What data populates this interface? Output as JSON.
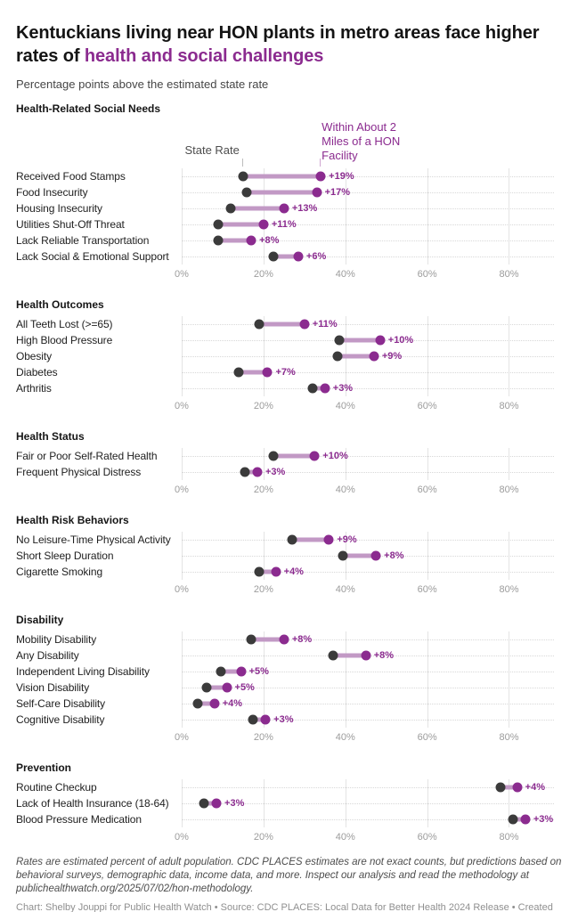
{
  "header": {
    "title_black": "Kentuckians living near HON plants in metro areas face higher rates of ",
    "title_accent": "health and social challenges",
    "subtitle": "Percentage points above the estimated state rate"
  },
  "legend": {
    "state_label": "State Rate",
    "hon_label": "Within About 2 Miles of a HON Facility"
  },
  "colors": {
    "accent": "#8b2b8f",
    "state_dot": "#3b3b3b",
    "connector": "#c299c5",
    "gridline": "#e4e4e4",
    "axis_text": "#9c9c9c"
  },
  "axis": {
    "tick_labels": [
      "0%",
      "20%",
      "40%",
      "60%",
      "80%"
    ],
    "tick_values": [
      0,
      20,
      40,
      60,
      80
    ],
    "max": 91
  },
  "chart_data": {
    "type": "dumbbell",
    "title": "Kentuckians living near HON plants in metro areas face higher rates of health and social challenges",
    "subtitle": "Percentage points above the estimated state rate",
    "series_names": [
      "State Rate",
      "Within About 2 Miles of a HON Facility"
    ],
    "x_unit": "percent of adult population",
    "xlim": [
      0,
      91
    ],
    "x_ticks": [
      0,
      20,
      40,
      60,
      80
    ],
    "sections": [
      {
        "name": "Health-Related Social Needs",
        "rows": [
          {
            "label": "Received Food Stamps",
            "state": 15,
            "hon": 34,
            "diff": "+19%"
          },
          {
            "label": "Food Insecurity",
            "state": 16,
            "hon": 33,
            "diff": "+17%"
          },
          {
            "label": "Housing Insecurity",
            "state": 12,
            "hon": 25,
            "diff": "+13%"
          },
          {
            "label": "Utilities Shut-Off Threat",
            "state": 9,
            "hon": 20,
            "diff": "+11%"
          },
          {
            "label": "Lack Reliable Transportation",
            "state": 9,
            "hon": 17,
            "diff": "+8%"
          },
          {
            "label": "Lack Social & Emotional Support",
            "state": 22.5,
            "hon": 28.5,
            "diff": "+6%"
          }
        ]
      },
      {
        "name": "Health Outcomes",
        "rows": [
          {
            "label": "All Teeth Lost (>=65)",
            "state": 19,
            "hon": 30,
            "diff": "+11%"
          },
          {
            "label": "High Blood Pressure",
            "state": 38.5,
            "hon": 48.5,
            "diff": "+10%"
          },
          {
            "label": "Obesity",
            "state": 38,
            "hon": 47,
            "diff": "+9%"
          },
          {
            "label": "Diabetes",
            "state": 14,
            "hon": 21,
            "diff": "+7%"
          },
          {
            "label": "Arthritis",
            "state": 32,
            "hon": 35,
            "diff": "+3%"
          }
        ]
      },
      {
        "name": "Health Status",
        "rows": [
          {
            "label": "Fair or Poor Self-Rated Health",
            "state": 22.5,
            "hon": 32.5,
            "diff": "+10%"
          },
          {
            "label": "Frequent Physical Distress",
            "state": 15.5,
            "hon": 18.5,
            "diff": "+3%"
          }
        ]
      },
      {
        "name": "Health Risk Behaviors",
        "rows": [
          {
            "label": "No Leisure-Time Physical Activity",
            "state": 27,
            "hon": 36,
            "diff": "+9%"
          },
          {
            "label": "Short Sleep Duration",
            "state": 39.5,
            "hon": 47.5,
            "diff": "+8%"
          },
          {
            "label": "Cigarette Smoking",
            "state": 19,
            "hon": 23,
            "diff": "+4%"
          }
        ]
      },
      {
        "name": "Disability",
        "rows": [
          {
            "label": "Mobility Disability",
            "state": 17,
            "hon": 25,
            "diff": "+8%"
          },
          {
            "label": "Any Disability",
            "state": 37,
            "hon": 45,
            "diff": "+8%"
          },
          {
            "label": "Independent Living Disability",
            "state": 9.5,
            "hon": 14.5,
            "diff": "+5%"
          },
          {
            "label": "Vision Disability",
            "state": 6,
            "hon": 11,
            "diff": "+5%"
          },
          {
            "label": "Self-Care Disability",
            "state": 4,
            "hon": 8,
            "diff": "+4%"
          },
          {
            "label": "Cognitive Disability",
            "state": 17.5,
            "hon": 20.5,
            "diff": "+3%"
          }
        ]
      },
      {
        "name": "Prevention",
        "rows": [
          {
            "label": "Routine Checkup",
            "state": 78,
            "hon": 82,
            "diff": "+4%"
          },
          {
            "label": "Lack of Health Insurance (18-64)",
            "state": 5.5,
            "hon": 8.5,
            "diff": "+3%"
          },
          {
            "label": "Blood Pressure Medication",
            "state": 81,
            "hon": 84,
            "diff": "+3%"
          }
        ]
      }
    ]
  },
  "footer": {
    "note": "Rates are estimated percent of adult population. CDC PLACES estimates are not exact counts, but predictions based on behavioral surveys, demographic data, income data, and more. Inspect our analysis and read the methodology at publichealthwatch.org/2025/07/02/hon-methodology.",
    "credit": "Chart: Shelby Jouppi for Public Health Watch • Source: CDC PLACES: Local Data for Better Health 2024 Release • Created with Datawrapper"
  }
}
